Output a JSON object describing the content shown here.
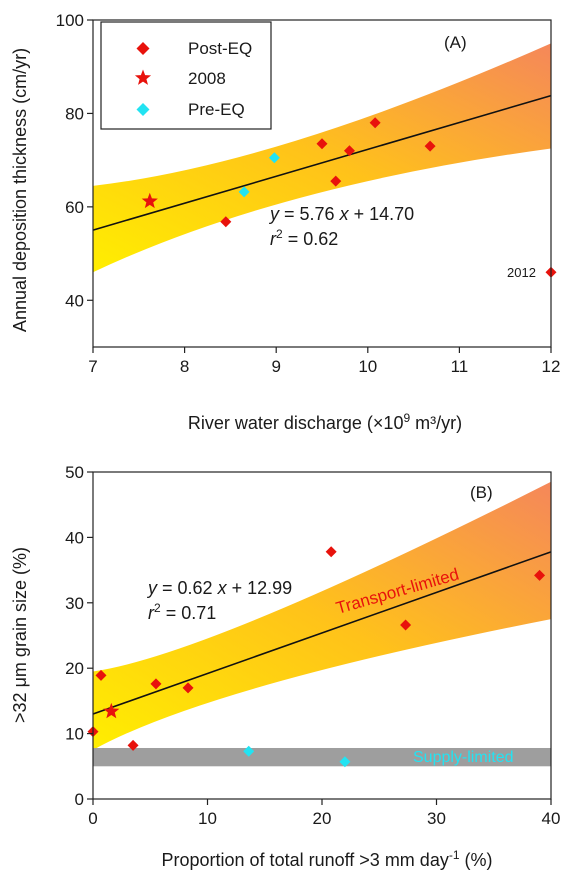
{
  "chart_data": [
    {
      "type": "scatter",
      "panel_label": "(A)",
      "xlabel": "River water discharge (×10",
      "xlabel_sup": "9",
      "xlabel_tail": " m³/yr)",
      "ylabel": "Annual deposition thickness (cm/yr)",
      "xlim": [
        7,
        12
      ],
      "ylim": [
        30,
        100
      ],
      "xticks": [
        "7",
        "8",
        "9",
        "10",
        "11",
        "12"
      ],
      "yticks": [
        "40",
        "60",
        "80",
        "100"
      ],
      "grid": false,
      "legend_position": "top-left",
      "legend": [
        {
          "label": "Post-EQ",
          "marker": "diamond",
          "color": "#e8120c"
        },
        {
          "label": "2008",
          "marker": "star",
          "color": "#e8120c"
        },
        {
          "label": "Pre-EQ",
          "marker": "diamond",
          "color": "#22e3f2"
        }
      ],
      "series": [
        {
          "name": "Post-EQ",
          "marker": "diamond",
          "color": "#e8120c",
          "points": [
            [
              8.45,
              56.8
            ],
            [
              9.5,
              73.5
            ],
            [
              9.65,
              65.5
            ],
            [
              9.8,
              72
            ],
            [
              10.08,
              78
            ],
            [
              10.68,
              73
            ],
            [
              12.0,
              46
            ]
          ]
        },
        {
          "name": "2008",
          "marker": "star",
          "color": "#e8120c",
          "points": [
            [
              7.62,
              61.2
            ]
          ]
        },
        {
          "name": "Pre-EQ",
          "marker": "diamond",
          "color": "#22e3f2",
          "points": [
            [
              8.65,
              63.2
            ],
            [
              8.98,
              70.5
            ]
          ]
        }
      ],
      "fit": {
        "slope": 5.76,
        "intercept": 14.7,
        "x_range": [
          7,
          12
        ]
      },
      "confidence_band": {
        "x": [
          7,
          9,
          12
        ],
        "lower": [
          46,
          64.5,
          72.5
        ],
        "upper": [
          64.5,
          69,
          95
        ]
      },
      "equation_line1": {
        "var_y": "y",
        "rest": " = 5.76 ",
        "var_x": "x",
        "tail": " + 14.70"
      },
      "equation_line2": {
        "var_r": "r",
        "sup": "2",
        "tail": " = 0.62"
      },
      "annotations": [
        {
          "text": "2012",
          "x": 12.0,
          "y": 46
        }
      ]
    },
    {
      "type": "scatter",
      "panel_label": "(B)",
      "xlabel": "Proportion of total runoff >3 mm day",
      "xlabel_sup": "-1",
      "xlabel_tail": " (%)",
      "ylabel": ">32 μm grain size (%)",
      "xlim": [
        0,
        40
      ],
      "ylim": [
        0,
        50
      ],
      "xticks": [
        "0",
        "10",
        "20",
        "30",
        "40"
      ],
      "yticks": [
        "0",
        "10",
        "20",
        "30",
        "40",
        "50"
      ],
      "grid": false,
      "series": [
        {
          "name": "Post-EQ",
          "marker": "diamond",
          "color": "#e8120c",
          "points": [
            [
              0.0,
              10.3
            ],
            [
              0.7,
              18.9
            ],
            [
              3.5,
              8.2
            ],
            [
              5.5,
              17.6
            ],
            [
              8.3,
              17.0
            ],
            [
              20.8,
              37.8
            ],
            [
              27.3,
              26.6
            ],
            [
              39.0,
              34.2
            ]
          ]
        },
        {
          "name": "2008",
          "marker": "star",
          "color": "#e8120c",
          "points": [
            [
              1.6,
              13.4
            ]
          ]
        },
        {
          "name": "Pre-EQ",
          "marker": "diamond",
          "color": "#22e3f2",
          "points": [
            [
              13.6,
              7.3
            ],
            [
              22.0,
              5.7
            ]
          ]
        }
      ],
      "fit": {
        "slope": 0.62,
        "intercept": 12.99,
        "x_range": [
          0,
          40
        ]
      },
      "confidence_band": {
        "x": [
          0,
          10,
          40
        ],
        "lower": [
          7.5,
          17.2,
          27.5
        ],
        "upper": [
          19.5,
          22,
          48.5
        ]
      },
      "supply_band": {
        "ymin": 5.0,
        "ymax": 7.8
      },
      "equation_line1": {
        "var_y": "y",
        "rest": " = 0.62 ",
        "var_x": "x",
        "tail": " + 12.99"
      },
      "equation_line2": {
        "var_r": "r",
        "sup": "2",
        "tail": " = 0.71"
      },
      "annotations": [
        {
          "text": "Transport-limited",
          "color": "#e8120c"
        },
        {
          "text": "Supply-limited",
          "color": "#22e3f2"
        }
      ]
    }
  ]
}
